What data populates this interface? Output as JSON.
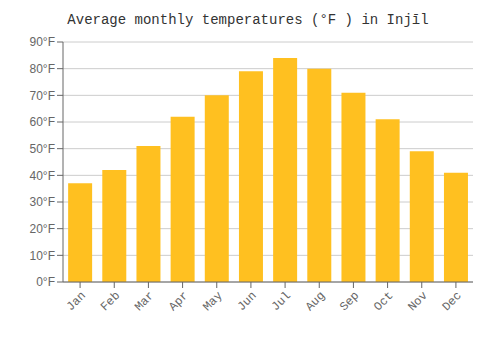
{
  "chart_data": {
    "type": "bar",
    "title": "Average monthly temperatures (°F ) in Injīl",
    "categories": [
      "Jan",
      "Feb",
      "Mar",
      "Apr",
      "May",
      "Jun",
      "Jul",
      "Aug",
      "Sep",
      "Oct",
      "Nov",
      "Dec"
    ],
    "values": [
      37,
      42,
      51,
      62,
      70,
      79,
      84,
      80,
      71,
      61,
      49,
      41
    ],
    "color": "#FFC020",
    "ylim": [
      0,
      90
    ],
    "yticks": [
      {
        "value": 0,
        "label": "0°F"
      },
      {
        "value": 10,
        "label": "10°F"
      },
      {
        "value": 20,
        "label": "20°F"
      },
      {
        "value": 30,
        "label": "30°F"
      },
      {
        "value": 40,
        "label": "40°F"
      },
      {
        "value": 50,
        "label": "50°F"
      },
      {
        "value": 60,
        "label": "60°F"
      },
      {
        "value": 70,
        "label": "70°F"
      },
      {
        "value": 80,
        "label": "80°F"
      },
      {
        "value": 90,
        "label": "90°F"
      }
    ],
    "grid": true
  }
}
